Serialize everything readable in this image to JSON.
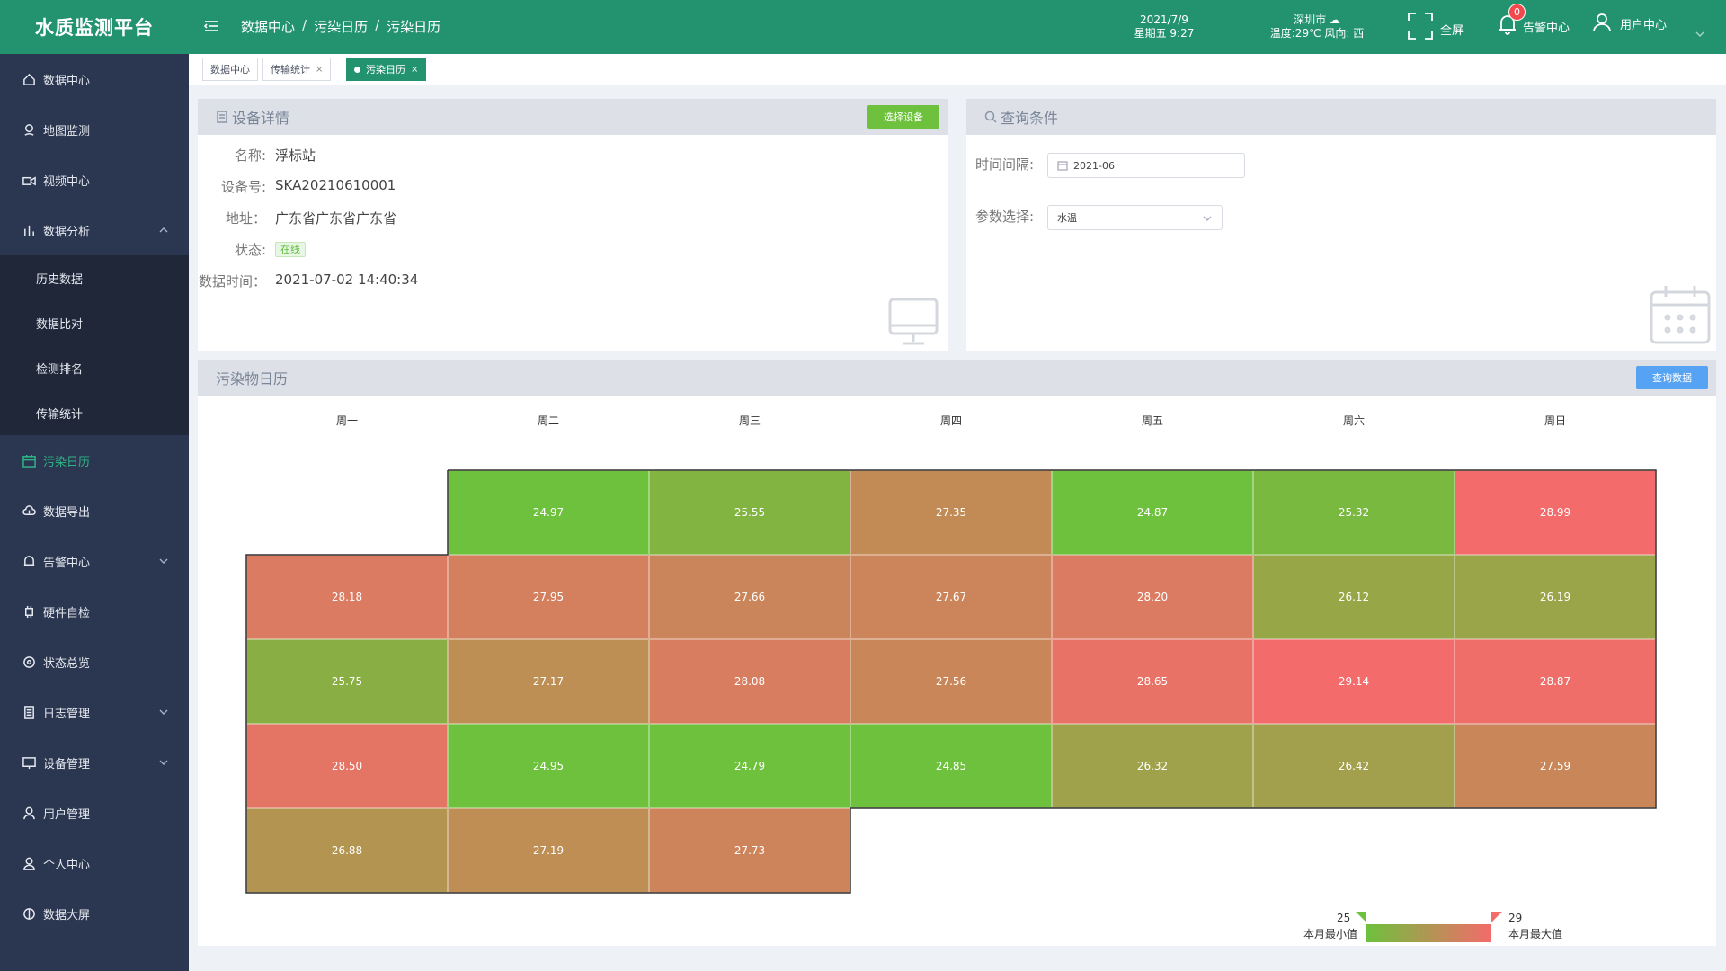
{
  "app": {
    "title": "水质监测平台"
  },
  "header": {
    "breadcrumbs": [
      "数据中心",
      "污染日历",
      "污染日历"
    ],
    "date": "2021/7/9",
    "weekday_time": "星期五 9:27",
    "city": "深圳市",
    "weather": "温度:29℃ 风向: 西",
    "fullscreen_label": "全屏",
    "alarm_label": "告警中心",
    "alarm_count": "0",
    "user_label": "用户中心"
  },
  "sidebar": {
    "items": [
      {
        "label": "数据中心",
        "icon": "home-icon"
      },
      {
        "label": "地图监测",
        "icon": "map-pin-icon"
      },
      {
        "label": "视频中心",
        "icon": "video-icon"
      },
      {
        "label": "数据分析",
        "icon": "bar-chart-icon",
        "expanded": true
      },
      {
        "label": "污染日历",
        "icon": "calendar-icon",
        "active": true
      },
      {
        "label": "数据导出",
        "icon": "cloud-download-icon"
      },
      {
        "label": "告警中心",
        "icon": "bell-icon"
      },
      {
        "label": "硬件自检",
        "icon": "chip-icon"
      },
      {
        "label": "状态总览",
        "icon": "status-icon"
      },
      {
        "label": "日志管理",
        "icon": "log-icon"
      },
      {
        "label": "设备管理",
        "icon": "monitor-icon"
      },
      {
        "label": "用户管理",
        "icon": "user-icon"
      },
      {
        "label": "个人中心",
        "icon": "person-icon"
      },
      {
        "label": "数据大屏",
        "icon": "screen-icon"
      }
    ],
    "subitems": [
      "历史数据",
      "数据比对",
      "检测排名",
      "传输统计"
    ]
  },
  "tabs": [
    {
      "label": "数据中心"
    },
    {
      "label": "传输统计"
    },
    {
      "label": "污染日历",
      "active": true
    }
  ],
  "device": {
    "title": "设备详情",
    "select_button": "选择设备",
    "name_label": "名称:",
    "name": "浮标站",
    "id_label": "设备号:",
    "id": "SKA20210610001",
    "address_label": "地址：",
    "address": "广东省广东省广东省",
    "status_label": "状态:",
    "status": "在线",
    "time_label": "数据时间：",
    "time": "2021-07-02 14:40:34"
  },
  "query": {
    "title": "查询条件",
    "interval_label": "时间间隔:",
    "interval_value": "2021-06",
    "param_label": "参数选择:",
    "param_value": "水温"
  },
  "calendar": {
    "title": "污染物日历",
    "query_button": "查询数据",
    "weekdays": [
      "周一",
      "周二",
      "周三",
      "周四",
      "周五",
      "周六",
      "周日"
    ],
    "legend_min_value": "25",
    "legend_max_value": "29",
    "legend_min_label": "本月最小值",
    "legend_max_label": "本月最大值"
  },
  "chart_data": {
    "type": "heatmap",
    "title": "污染物日历",
    "month": "2021-06",
    "parameter": "水温",
    "first_weekday_index": 1,
    "weekdays": [
      "周一",
      "周二",
      "周三",
      "周四",
      "周五",
      "周六",
      "周日"
    ],
    "values": [
      24.97,
      25.55,
      27.35,
      24.87,
      25.32,
      28.99,
      28.18,
      27.95,
      27.66,
      27.67,
      28.2,
      26.12,
      26.19,
      25.75,
      27.17,
      28.08,
      27.56,
      28.65,
      29.14,
      28.87,
      28.5,
      24.95,
      24.79,
      24.85,
      26.32,
      26.42,
      27.59,
      26.88,
      27.19,
      27.73
    ],
    "min": 25,
    "max": 29,
    "color_min": "#6dc13c",
    "color_max": "#f36b6b"
  }
}
